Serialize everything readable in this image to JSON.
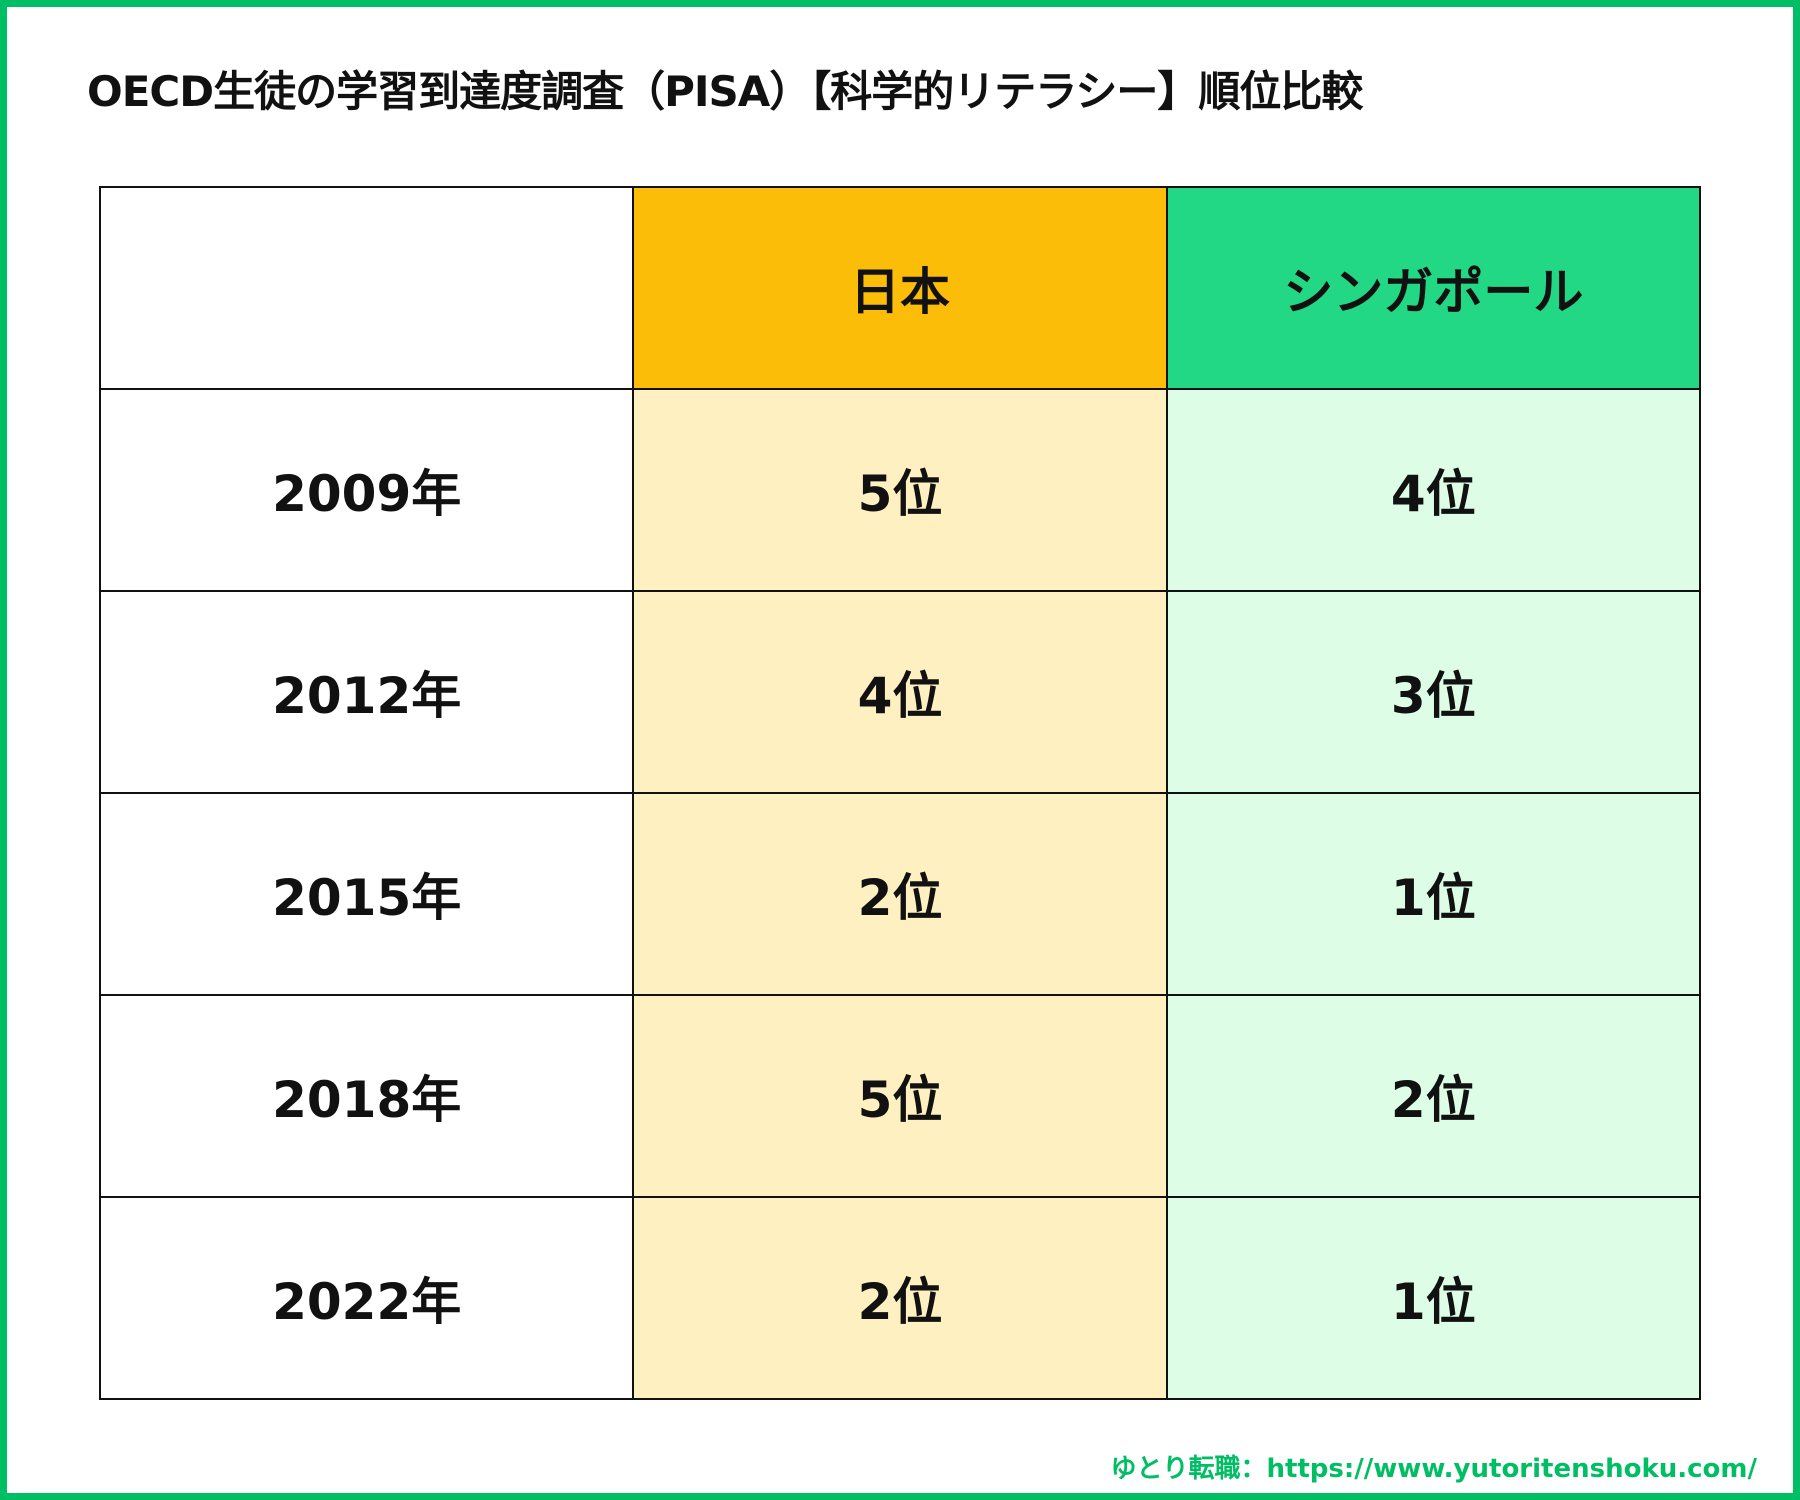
{
  "title": "OECD生徒の学習到達度調査（PISA）【科学的リテラシー】順位比較",
  "table": {
    "headers": [
      "",
      "日本",
      "シンガポール"
    ],
    "rows": [
      {
        "year": "2009年",
        "japan": "5位",
        "singapore": "4位"
      },
      {
        "year": "2012年",
        "japan": "4位",
        "singapore": "3位"
      },
      {
        "year": "2015年",
        "japan": "2位",
        "singapore": "1位"
      },
      {
        "year": "2018年",
        "japan": "5位",
        "singapore": "2位"
      },
      {
        "year": "2022年",
        "japan": "2位",
        "singapore": "1位"
      }
    ]
  },
  "footer": "ゆとり転職：https://www.yutoritenshoku.com/",
  "colors": {
    "border": "#00be64",
    "japan_header": "#fbbd08",
    "singapore_header": "#22d885",
    "japan_cell": "#fff0c1",
    "singapore_cell": "#ddfde6"
  }
}
